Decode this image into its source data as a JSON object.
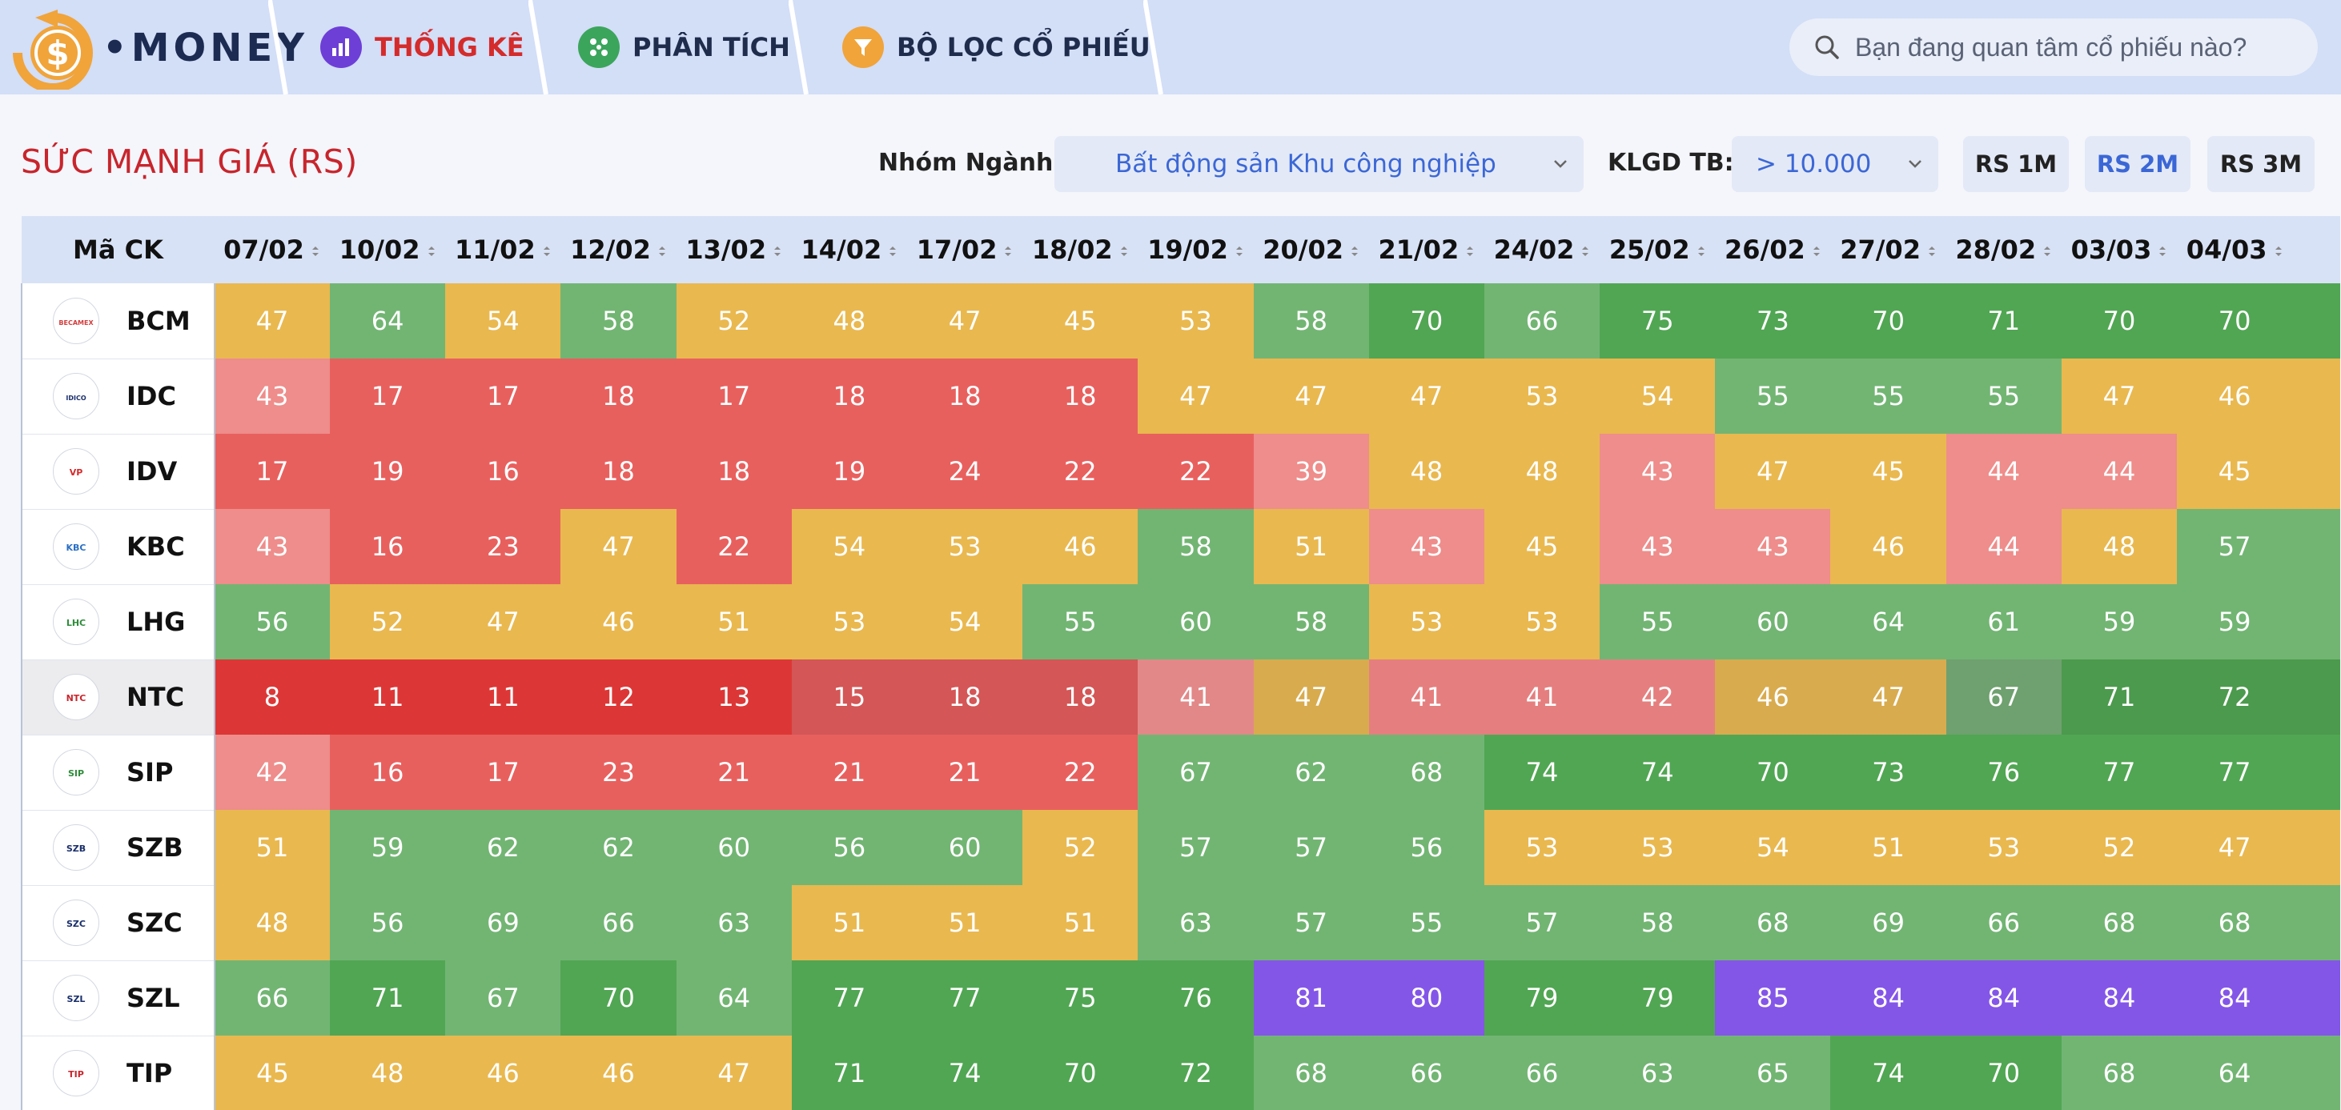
{
  "brand": {
    "name": "MONEY",
    "coin_symbol": "$"
  },
  "nav": {
    "tabs": [
      {
        "label": "THỐNG KÊ",
        "icon": "bar-chart-icon",
        "icon_color": "#6d3fd7",
        "active": true
      },
      {
        "label": "PHÂN TÍCH",
        "icon": "grid-dots-icon",
        "icon_color": "#3ba55c",
        "active": false
      },
      {
        "label": "BỘ LỌC CỔ PHIẾU",
        "icon": "filter-icon",
        "icon_color": "#f0a43a",
        "active": false
      }
    ],
    "search_placeholder": "Bạn đang quan tâm cổ phiếu nào?"
  },
  "toolbar": {
    "title": "SỨC MẠNH GIÁ (RS)",
    "industry_label": "Nhóm Ngành:",
    "industry_value": "Bất động sản Khu công nghiệp",
    "volume_label": "KLGD TB:",
    "volume_value": "> 10.000",
    "rs_buttons": [
      {
        "label": "RS 1M",
        "active": false
      },
      {
        "label": "RS 2M",
        "active": true
      },
      {
        "label": "RS 3M",
        "active": false
      }
    ]
  },
  "table": {
    "ticker_header": "Mã CK",
    "dates": [
      "07/02",
      "10/02",
      "11/02",
      "12/02",
      "13/02",
      "14/02",
      "17/02",
      "18/02",
      "19/02",
      "20/02",
      "21/02",
      "24/02",
      "25/02",
      "26/02",
      "27/02",
      "28/02",
      "03/03",
      "04/03"
    ],
    "rows": [
      {
        "ticker": "BCM",
        "logo_text": "BECAMEX",
        "logo_color": "#d23c3c",
        "values": [
          47,
          64,
          54,
          58,
          52,
          48,
          47,
          45,
          53,
          58,
          70,
          66,
          75,
          73,
          70,
          71,
          70,
          70
        ],
        "colors": [
          "y",
          "gl",
          "y",
          "gl",
          "y",
          "y",
          "y",
          "y",
          "y",
          "gl",
          "g",
          "gl",
          "g",
          "g",
          "g",
          "g",
          "g",
          "g"
        ]
      },
      {
        "ticker": "IDC",
        "logo_text": "IDICO",
        "logo_color": "#1a2f6b",
        "values": [
          43,
          17,
          17,
          18,
          17,
          18,
          18,
          18,
          47,
          47,
          47,
          53,
          54,
          55,
          55,
          55,
          47,
          46
        ],
        "colors": [
          "rl",
          "r",
          "r",
          "r",
          "r",
          "r",
          "r",
          "r",
          "y",
          "y",
          "y",
          "y",
          "y",
          "gl",
          "gl",
          "gl",
          "y",
          "y"
        ]
      },
      {
        "ticker": "IDV",
        "logo_text": "VP",
        "logo_color": "#d42b2b",
        "values": [
          17,
          19,
          16,
          18,
          18,
          19,
          24,
          22,
          22,
          39,
          48,
          48,
          43,
          47,
          45,
          44,
          44,
          45
        ],
        "colors": [
          "r",
          "r",
          "r",
          "r",
          "r",
          "r",
          "r",
          "r",
          "r",
          "rl",
          "y",
          "y",
          "rl",
          "y",
          "y",
          "rl",
          "rl",
          "y"
        ]
      },
      {
        "ticker": "KBC",
        "logo_text": "KBC",
        "logo_color": "#2b6fc4",
        "values": [
          43,
          16,
          23,
          47,
          22,
          54,
          53,
          46,
          58,
          51,
          43,
          45,
          43,
          43,
          46,
          44,
          48,
          57
        ],
        "colors": [
          "rl",
          "r",
          "r",
          "y",
          "r",
          "y",
          "y",
          "y",
          "gl",
          "y",
          "rl",
          "y",
          "rl",
          "rl",
          "y",
          "rl",
          "y",
          "gl"
        ]
      },
      {
        "ticker": "LHG",
        "logo_text": "LHC",
        "logo_color": "#2f8c3a",
        "values": [
          56,
          52,
          47,
          46,
          51,
          53,
          54,
          55,
          60,
          58,
          53,
          53,
          55,
          60,
          64,
          61,
          59,
          59
        ],
        "colors": [
          "gl",
          "y",
          "y",
          "y",
          "y",
          "y",
          "y",
          "gl",
          "gl",
          "gl",
          "y",
          "y",
          "gl",
          "gl",
          "gl",
          "gl",
          "gl",
          "gl"
        ]
      },
      {
        "ticker": "NTC",
        "logo_text": "NTC",
        "logo_color": "#c8252c",
        "values": [
          8,
          11,
          11,
          12,
          13,
          15,
          18,
          18,
          41,
          47,
          41,
          41,
          42,
          46,
          47,
          67,
          71,
          72
        ],
        "colors": [
          "rd",
          "rd",
          "rd",
          "rd",
          "rd",
          "rm",
          "rm",
          "rm",
          "rp",
          "yd",
          "rp2",
          "rp2",
          "rp2",
          "yd",
          "yd",
          "gm",
          "gd",
          "gd"
        ]
      },
      {
        "ticker": "SIP",
        "logo_text": "SIP",
        "logo_color": "#2f8c3a",
        "values": [
          42,
          16,
          17,
          23,
          21,
          21,
          21,
          22,
          67,
          62,
          68,
          74,
          74,
          70,
          73,
          76,
          77,
          77
        ],
        "colors": [
          "rl",
          "r",
          "r",
          "r",
          "r",
          "r",
          "r",
          "r",
          "gl",
          "gl",
          "gl",
          "g",
          "g",
          "g",
          "g",
          "g",
          "g",
          "g"
        ]
      },
      {
        "ticker": "SZB",
        "logo_text": "SZB",
        "logo_color": "#1a2f6b",
        "values": [
          51,
          59,
          62,
          62,
          60,
          56,
          60,
          52,
          57,
          57,
          56,
          53,
          53,
          54,
          51,
          53,
          52,
          47
        ],
        "colors": [
          "y",
          "gl",
          "gl",
          "gl",
          "gl",
          "gl",
          "gl",
          "y",
          "gl",
          "gl",
          "gl",
          "y",
          "y",
          "y",
          "y",
          "y",
          "y",
          "y"
        ]
      },
      {
        "ticker": "SZC",
        "logo_text": "SZC",
        "logo_color": "#1a2f6b",
        "values": [
          48,
          56,
          69,
          66,
          63,
          51,
          51,
          51,
          63,
          57,
          55,
          57,
          58,
          68,
          69,
          66,
          68,
          68
        ],
        "colors": [
          "y",
          "gl",
          "gl",
          "gl",
          "gl",
          "y",
          "y",
          "y",
          "gl",
          "gl",
          "gl",
          "gl",
          "gl",
          "gl",
          "gl",
          "gl",
          "gl",
          "gl"
        ]
      },
      {
        "ticker": "SZL",
        "logo_text": "SZL",
        "logo_color": "#1a2f6b",
        "values": [
          66,
          71,
          67,
          70,
          64,
          77,
          77,
          75,
          76,
          81,
          80,
          79,
          79,
          85,
          84,
          84,
          84,
          84
        ],
        "colors": [
          "gl",
          "g",
          "gl",
          "g",
          "gl",
          "g",
          "g",
          "g",
          "g",
          "p",
          "p",
          "g",
          "g",
          "p",
          "p",
          "p",
          "p",
          "p"
        ]
      },
      {
        "ticker": "TIP",
        "logo_text": "TIP",
        "logo_color": "#c8252c",
        "values": [
          45,
          48,
          46,
          46,
          47,
          71,
          74,
          70,
          72,
          68,
          66,
          66,
          63,
          65,
          74,
          70,
          68,
          64
        ],
        "colors": [
          "y",
          "y",
          "y",
          "y",
          "y",
          "g",
          "g",
          "g",
          "g",
          "gl",
          "gl",
          "gl",
          "gl",
          "gl",
          "g",
          "g",
          "gl",
          "gl"
        ]
      }
    ],
    "highlight_row": "NTC"
  }
}
